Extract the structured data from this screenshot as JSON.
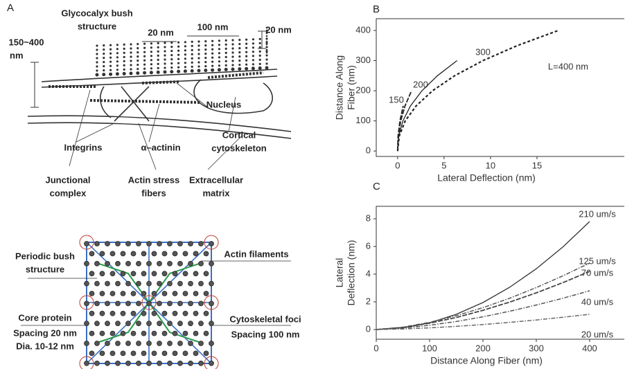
{
  "panel_labels": [
    "A",
    "B",
    "C"
  ],
  "diagram": {
    "labels": [
      [
        "Glycocalyx bush",
        "structure"
      ],
      [
        "20 nm"
      ],
      [
        "100 nm"
      ],
      [
        "20 nm"
      ],
      [
        "150~400",
        "nm"
      ],
      [
        "Nucleus"
      ],
      [
        "Integrins"
      ],
      [
        "α–actinin"
      ],
      [
        "Cortical",
        "cytoskeleton"
      ],
      [
        "Junctional",
        "complex"
      ],
      [
        "Actin stress",
        "fibers"
      ],
      [
        "Extracellular",
        "matrix"
      ],
      [
        "Periodic bush",
        "structure"
      ],
      [
        "Actin filaments"
      ],
      [
        "Core protein"
      ],
      [
        "Spacing 20 nm",
        "Dia. 10-12 nm"
      ],
      [
        "Cytoskeletal foci"
      ],
      [
        "Spacing 100 nm"
      ]
    ]
  },
  "chart_data": [
    {
      "type": "line",
      "x_label": "Lateral Deflection (nm)",
      "y_label": [
        "Distance Along",
        "Fiber (nm)"
      ],
      "xlim": [
        -2.3,
        24.4
      ],
      "ylim": [
        -18,
        439
      ],
      "xticks": [
        0,
        5,
        10,
        15
      ],
      "yticks": [
        0,
        100,
        200,
        300,
        400
      ],
      "series": [
        {
          "name": "150",
          "color": "#222222",
          "style": "dashed",
          "x": [
            0,
            0.05,
            0.25,
            0.6
          ],
          "values": [
            0,
            50,
            100,
            150
          ]
        },
        {
          "name": "200",
          "color": "#222222",
          "style": "dashed",
          "x": [
            0,
            0.07,
            0.33,
            0.8,
            1.5
          ],
          "values": [
            0,
            50,
            100,
            150,
            200
          ]
        },
        {
          "name": "300",
          "color": "#222222",
          "style": "solid",
          "x": [
            0,
            0.12,
            0.57,
            1.39,
            2.62,
            4.29,
            6.4
          ],
          "values": [
            0,
            50,
            100,
            150,
            200,
            250,
            300
          ]
        },
        {
          "name": "L=400 nm",
          "color": "#222222",
          "style": "dotted",
          "x": [
            0,
            0.18,
            0.82,
            2.0,
            3.76,
            6.15,
            9.19,
            12.9,
            17.3
          ],
          "values": [
            0,
            50,
            100,
            150,
            200,
            250,
            300,
            350,
            400
          ]
        }
      ]
    },
    {
      "type": "line",
      "x_label": "Distance Along Fiber (nm)",
      "y_label": [
        "Lateral",
        "Deflection (nm)"
      ],
      "xlim": [
        0,
        465
      ],
      "ylim": [
        -0.7,
        8.9
      ],
      "xticks": [
        0,
        100,
        200,
        300,
        400
      ],
      "yticks": [
        0,
        2,
        4,
        6,
        8
      ],
      "x": [
        0,
        50,
        100,
        150,
        200,
        250,
        300,
        350,
        400
      ],
      "series": [
        {
          "name": "210 um/s",
          "color": "#333333",
          "style": "solid",
          "values": [
            0,
            0.12,
            0.49,
            1.1,
            1.95,
            3.05,
            4.39,
            5.97,
            7.8
          ]
        },
        {
          "name": "125 um/s",
          "color": "#555555",
          "style": "dashdot",
          "values": [
            0,
            0.17,
            0.52,
            1.0,
            1.58,
            2.26,
            3.03,
            3.88,
            4.8
          ]
        },
        {
          "name": "70 um/s",
          "color": "#444444",
          "style": "dashed",
          "values": [
            0,
            0.15,
            0.46,
            0.87,
            1.39,
            1.98,
            2.65,
            3.39,
            4.2
          ]
        },
        {
          "name": "40 um/s",
          "color": "#555555",
          "style": "dashdot",
          "values": [
            0,
            0.1,
            0.31,
            0.58,
            0.92,
            1.32,
            1.77,
            2.26,
            2.8
          ]
        },
        {
          "name": "20 um/s",
          "color": "#666666",
          "style": "dashdot",
          "values": [
            0,
            0.04,
            0.12,
            0.23,
            0.36,
            0.52,
            0.69,
            0.89,
            1.1
          ]
        }
      ]
    }
  ]
}
